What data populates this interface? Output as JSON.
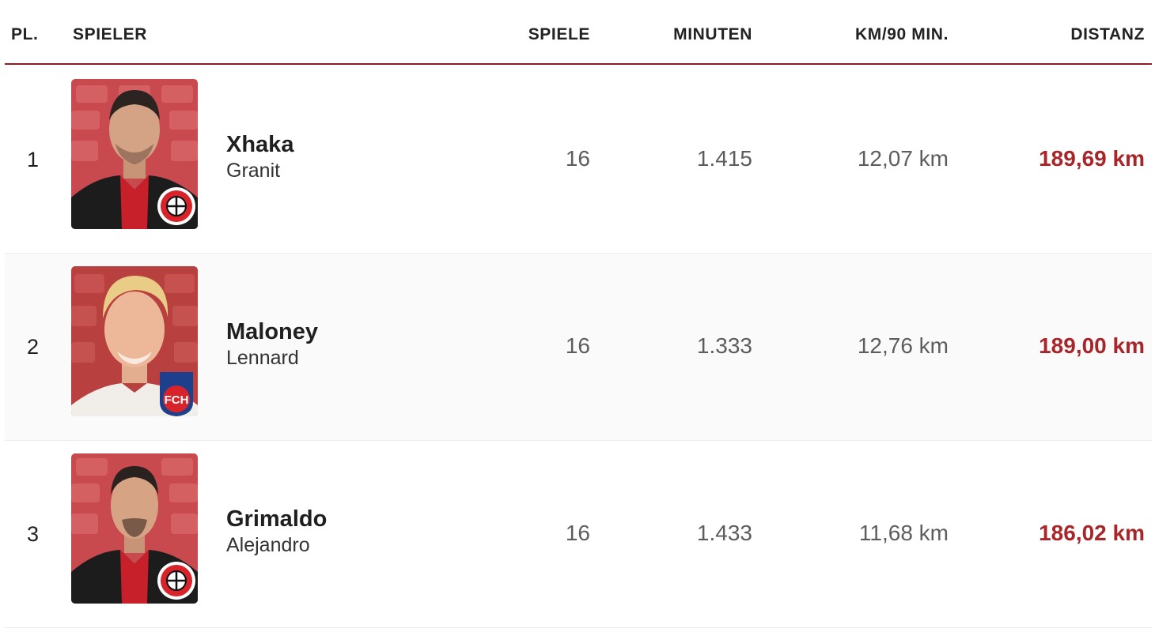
{
  "table": {
    "headers": {
      "rank": "PL.",
      "player": "SPIELER",
      "games": "SPIELE",
      "minutes": "MINUTEN",
      "km_per_90": "KM/90 MIN.",
      "distance": "DISTANZ"
    },
    "rows": [
      {
        "rank": "1",
        "last_name": "Xhaka",
        "first_name": "Granit",
        "games": "16",
        "minutes": "1.415",
        "km_per_90": "12,07 km",
        "distance": "189,69 km",
        "club_badge": "leverkusen-crest-icon"
      },
      {
        "rank": "2",
        "last_name": "Maloney",
        "first_name": "Lennard",
        "games": "16",
        "minutes": "1.333",
        "km_per_90": "12,76 km",
        "distance": "189,00 km",
        "club_badge": "heidenheim-crest-icon",
        "badge_text": "FCH"
      },
      {
        "rank": "3",
        "last_name": "Grimaldo",
        "first_name": "Alejandro",
        "games": "16",
        "minutes": "1.433",
        "km_per_90": "11,68 km",
        "distance": "186,02 km",
        "club_badge": "leverkusen-crest-icon"
      }
    ]
  },
  "colors": {
    "accent_line": "#8e1c22",
    "distance_text": "#a8262a",
    "value_text": "#5d5d5d"
  }
}
